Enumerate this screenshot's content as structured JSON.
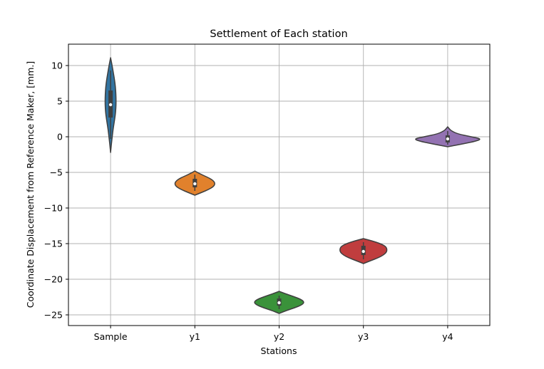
{
  "chart_data": {
    "type": "violin",
    "title": "Settlement of Each station",
    "xlabel": "Stations",
    "ylabel": "Coordinate Displacement from Reference Maker, [mm.]",
    "categories": [
      "Sample",
      "y1",
      "y2",
      "y3",
      "y4"
    ],
    "ylim": [
      -26.5,
      13
    ],
    "yticks": [
      10,
      5,
      0,
      -5,
      -10,
      -15,
      -20,
      -25
    ],
    "ytick_labels": [
      "10",
      "5",
      "0",
      "−5",
      "−10",
      "−15",
      "−20",
      "−25"
    ],
    "grid": true,
    "violins": [
      {
        "name": "Sample",
        "color": "#3274a1",
        "min": -2.2,
        "max": 11.1,
        "q1": 2.7,
        "median": 4.5,
        "q3": 6.5,
        "whisker_low": -0.3,
        "whisker_high": 9.3,
        "max_halfwidth": 0.065,
        "profile": [
          [
            -2.2,
            0.0
          ],
          [
            -1.0,
            0.15
          ],
          [
            0.0,
            0.3
          ],
          [
            1.0,
            0.45
          ],
          [
            2.0,
            0.65
          ],
          [
            3.0,
            0.85
          ],
          [
            4.0,
            0.97
          ],
          [
            5.0,
            1.0
          ],
          [
            6.0,
            0.97
          ],
          [
            7.0,
            0.88
          ],
          [
            8.0,
            0.72
          ],
          [
            9.0,
            0.5
          ],
          [
            10.0,
            0.28
          ],
          [
            11.1,
            0.0
          ]
        ]
      },
      {
        "name": "y1",
        "color": "#e1812c",
        "min": -8.2,
        "max": -4.8,
        "q1": -7.1,
        "median": -6.6,
        "q3": -5.9,
        "whisker_low": -7.6,
        "whisker_high": -5.3,
        "max_halfwidth": 0.24,
        "profile": [
          [
            -8.2,
            0.0
          ],
          [
            -7.8,
            0.35
          ],
          [
            -7.4,
            0.68
          ],
          [
            -7.0,
            0.92
          ],
          [
            -6.6,
            1.0
          ],
          [
            -6.2,
            0.93
          ],
          [
            -5.8,
            0.72
          ],
          [
            -5.4,
            0.4
          ],
          [
            -5.0,
            0.12
          ],
          [
            -4.8,
            0.0
          ]
        ]
      },
      {
        "name": "y2",
        "color": "#3a923a",
        "min": -24.8,
        "max": -21.7,
        "q1": -23.7,
        "median": -23.3,
        "q3": -22.7,
        "whisker_low": -24.2,
        "whisker_high": -22.3,
        "max_halfwidth": 0.3,
        "profile": [
          [
            -24.8,
            0.0
          ],
          [
            -24.4,
            0.28
          ],
          [
            -24.0,
            0.62
          ],
          [
            -23.6,
            0.9
          ],
          [
            -23.2,
            1.0
          ],
          [
            -22.8,
            0.85
          ],
          [
            -22.4,
            0.55
          ],
          [
            -22.0,
            0.22
          ],
          [
            -21.7,
            0.0
          ]
        ]
      },
      {
        "name": "y3",
        "color": "#c03d3e",
        "min": -17.8,
        "max": -14.3,
        "q1": -16.6,
        "median": -16.1,
        "q3": -15.3,
        "whisker_low": -17.2,
        "whisker_high": -14.8,
        "max_halfwidth": 0.28,
        "profile": [
          [
            -17.8,
            0.0
          ],
          [
            -17.4,
            0.3
          ],
          [
            -17.0,
            0.62
          ],
          [
            -16.6,
            0.85
          ],
          [
            -16.2,
            0.98
          ],
          [
            -15.8,
            1.0
          ],
          [
            -15.4,
            0.95
          ],
          [
            -15.0,
            0.72
          ],
          [
            -14.6,
            0.35
          ],
          [
            -14.3,
            0.0
          ]
        ]
      },
      {
        "name": "y4",
        "color": "#9372b2",
        "min": -1.4,
        "max": 1.4,
        "q1": -0.8,
        "median": -0.3,
        "q3": 0.2,
        "whisker_low": -1.1,
        "whisker_high": 0.8,
        "max_halfwidth": 0.4,
        "profile": [
          [
            -1.4,
            0.0
          ],
          [
            -1.0,
            0.45
          ],
          [
            -0.6,
            0.85
          ],
          [
            -0.3,
            1.0
          ],
          [
            0.0,
            0.7
          ],
          [
            0.4,
            0.3
          ],
          [
            0.8,
            0.12
          ],
          [
            1.1,
            0.05
          ],
          [
            1.4,
            0.0
          ]
        ]
      }
    ]
  }
}
